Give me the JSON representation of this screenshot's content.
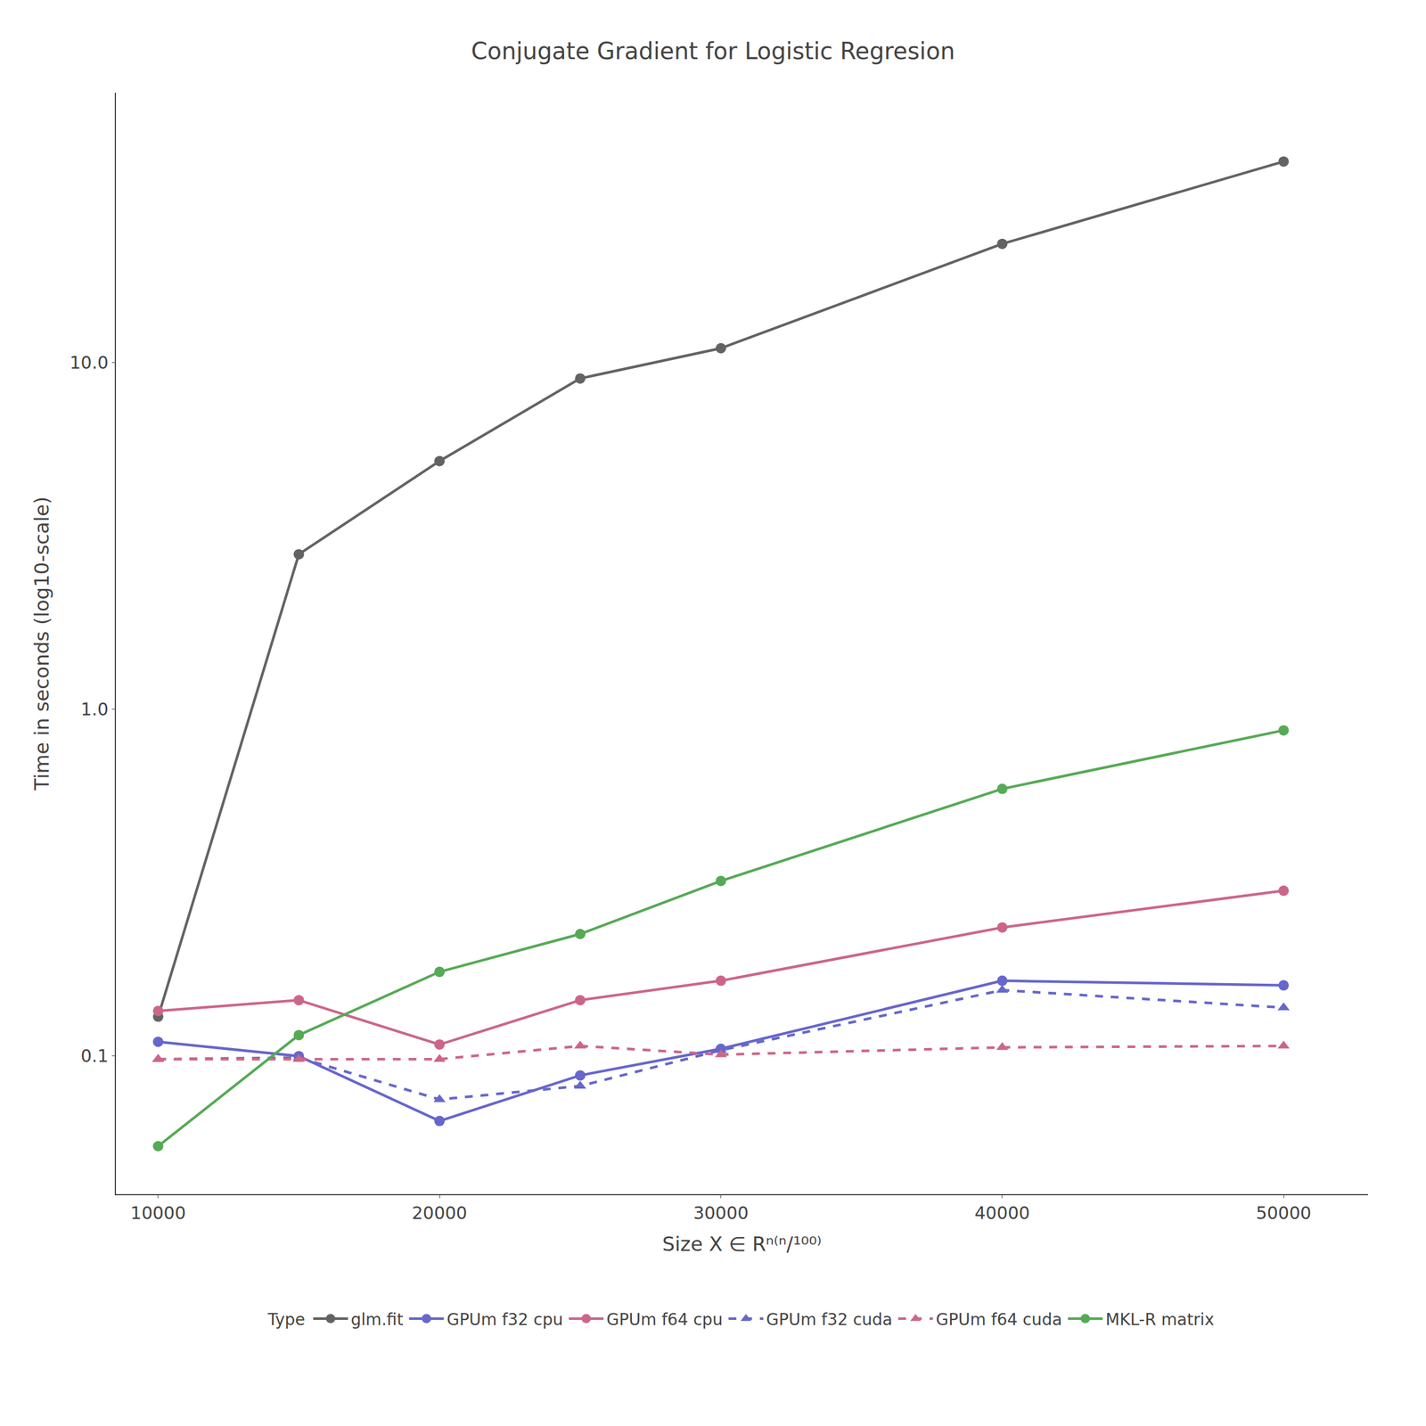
{
  "chart_data": {
    "type": "line",
    "title": "Conjugate Gradient for Logistic Regresion",
    "x_label": "Size X ∈ Rⁿ⁽ⁿ/¹⁰⁰⁾",
    "y_label": "Time in seconds (log10-scale)",
    "x": [
      10000,
      15000,
      20000,
      25000,
      30000,
      40000,
      50000
    ],
    "series": [
      {
        "name": "glm.fit",
        "color": "#636363",
        "marker": "circle",
        "line_style": "solid",
        "values": [
          0.13,
          2.8,
          5.2,
          9.0,
          11.0,
          22.0,
          38.0
        ]
      },
      {
        "name": "GPUm f32 cpu",
        "color": "#6666cc",
        "marker": "circle",
        "line_style": "solid",
        "values": [
          0.11,
          0.1,
          0.065,
          0.088,
          0.105,
          0.165,
          0.16
        ]
      },
      {
        "name": "GPUm f64 cpu",
        "color": "#cc6688",
        "marker": "circle",
        "line_style": "solid",
        "values": [
          0.135,
          0.145,
          0.108,
          0.145,
          0.165,
          0.235,
          0.3
        ]
      },
      {
        "name": "GPUm f32 cuda",
        "color": "#6666cc",
        "marker": "triangle-up",
        "line_style": "dash",
        "values": [
          0.098,
          0.099,
          0.075,
          0.082,
          0.104,
          0.155,
          0.138
        ]
      },
      {
        "name": "GPUm f64 cuda",
        "color": "#cc6688",
        "marker": "triangle-up",
        "line_style": "dash",
        "values": [
          0.098,
          0.098,
          0.098,
          0.107,
          0.101,
          0.106,
          0.107
        ]
      },
      {
        "name": "MKL-R matrix",
        "color": "#55aa55",
        "marker": "circle",
        "line_style": "solid",
        "values": [
          0.055,
          0.115,
          0.175,
          0.225,
          0.32,
          0.59,
          0.87
        ]
      }
    ],
    "xlim": [
      8500,
      53000
    ],
    "xticks": [
      10000,
      20000,
      30000,
      40000,
      50000
    ],
    "ylim": [
      0.04,
      60.0
    ],
    "yticks": [
      0.1,
      {
        "value": 1.0,
        "label": "1.0"
      },
      {
        "value": 10.0,
        "label": "10.0"
      }
    ],
    "log": "y",
    "grid": false,
    "legend": "bottom",
    "legend_title": "Type"
  }
}
